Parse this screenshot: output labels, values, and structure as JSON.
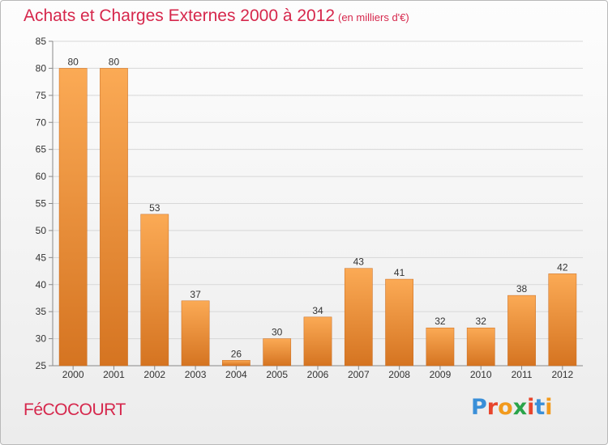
{
  "header": {
    "title": "Achats et Charges Externes 2000 à 2012",
    "unit": "(en milliers d'€)"
  },
  "footer": {
    "commune": "FéCOCOURT",
    "logo_text": "Proxiti",
    "logo_colors": [
      "#3a8fd8",
      "#e8452c",
      "#f29a1d",
      "#2aa44a",
      "#e8452c",
      "#3a8fd8",
      "#f29a1d"
    ]
  },
  "colors": {
    "bar_top": "#fbaa55",
    "bar_bottom": "#d57421",
    "title": "#d6274c"
  },
  "chart_data": {
    "type": "bar",
    "title": "Achats et Charges Externes 2000 à 2012",
    "subtitle": "(en milliers d'€)",
    "categories": [
      "2000",
      "2001",
      "2002",
      "2003",
      "2004",
      "2005",
      "2006",
      "2007",
      "2008",
      "2009",
      "2010",
      "2011",
      "2012"
    ],
    "values": [
      80,
      80,
      53,
      37,
      26,
      30,
      34,
      43,
      41,
      32,
      32,
      38,
      42
    ],
    "ylim": [
      25,
      85
    ],
    "yticks": [
      25,
      30,
      35,
      40,
      45,
      50,
      55,
      60,
      65,
      70,
      75,
      80,
      85
    ],
    "grid": true,
    "legend": "none"
  }
}
